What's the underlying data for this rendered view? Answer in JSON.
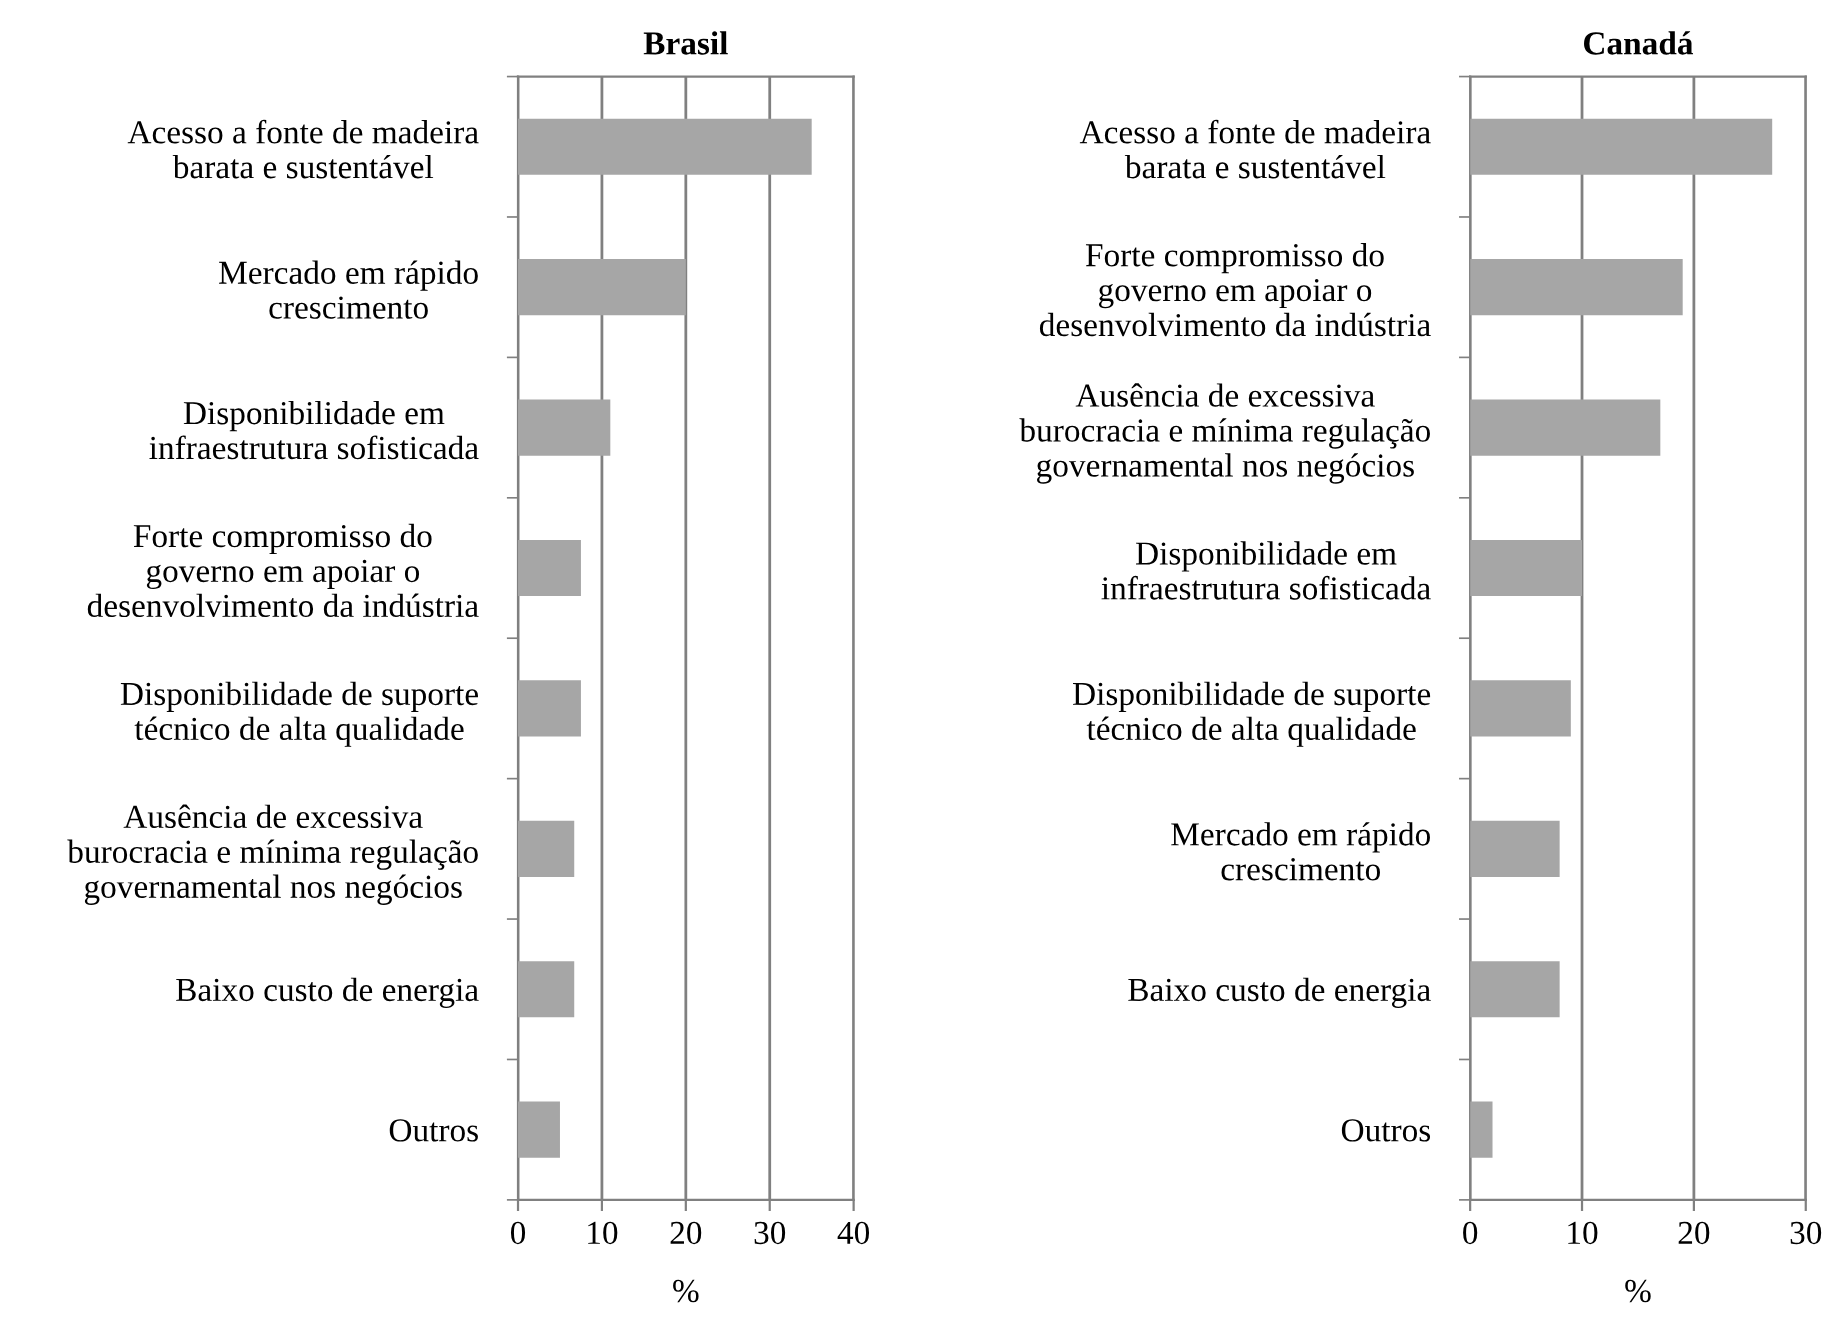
{
  "chart_data": [
    {
      "type": "bar",
      "orientation": "horizontal",
      "title": "Brasil",
      "xlabel": "%",
      "categories": [
        "Acesso a fonte de madeira\nbarata e sustentável",
        "Mercado em rápido\ncrescimento",
        "Disponibilidade em\ninfraestrutura sofisticada",
        "Forte compromisso do\ngoverno em apoiar o\ndesenvolvimento da indústria",
        "Disponibilidade de suporte\ntécnico de alta qualidade",
        "Ausência de excessiva\nburocracia e mínima regulação\ngovernamental nos negócios",
        "Baixo custo de energia",
        "Outros"
      ],
      "values": [
        35,
        20,
        11,
        7.5,
        7.5,
        6.7,
        6.7,
        5
      ],
      "color": "#a6a6a6",
      "xlim": [
        0,
        40
      ],
      "xticks": [
        0,
        10,
        20,
        30,
        40
      ],
      "grid": "x"
    },
    {
      "type": "bar",
      "orientation": "horizontal",
      "title": "Canadá",
      "xlabel": "%",
      "categories": [
        "Acesso a fonte de madeira\nbarata e sustentável",
        "Forte compromisso do\ngoverno em apoiar o\ndesenvolvimento da indústria",
        "Ausência de excessiva\nburocracia e mínima regulação\ngovernamental nos negócios",
        "Disponibilidade em\ninfraestrutura sofisticada",
        "Disponibilidade de suporte\ntécnico de alta qualidade",
        "Mercado em rápido\ncrescimento",
        "Baixo custo de energia",
        "Outros"
      ],
      "values": [
        27,
        19,
        17,
        10,
        9,
        8,
        8,
        2
      ],
      "color": "#a6a6a6",
      "xlim": [
        0,
        30
      ],
      "xticks": [
        0,
        10,
        20,
        30
      ],
      "grid": "x"
    }
  ]
}
